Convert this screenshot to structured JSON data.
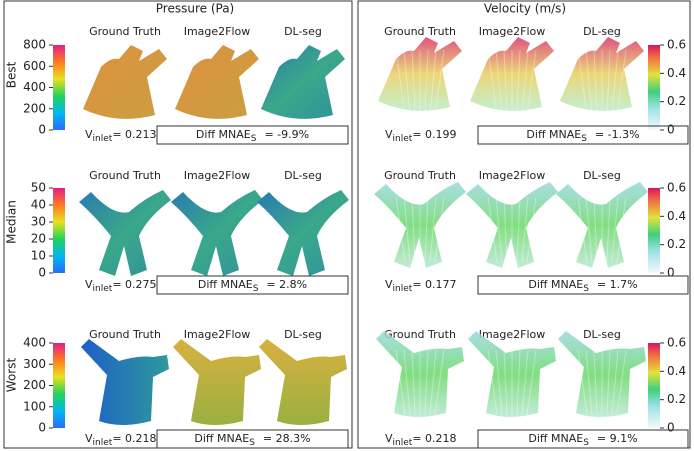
{
  "row_labels": [
    "Best",
    "Median",
    "Worst"
  ],
  "vinlet_symbol": "V",
  "vinlet_subscript": "inlet",
  "diff_label": "Diff MNAE",
  "diff_subscript": "S",
  "panels": [
    {
      "title": "Pressure (Pa)",
      "columns": [
        "Ground Truth",
        "Image2Flow",
        "DL-seg"
      ],
      "rows": [
        {
          "colorbar": {
            "lim": [
              0,
              800
            ],
            "ticks": [
              0,
              200,
              400,
              600,
              800
            ]
          },
          "vinlet": "= 0.213",
          "diff": "= -9.9%"
        },
        {
          "colorbar": {
            "lim": [
              0,
              50
            ],
            "ticks": [
              0,
              10,
              20,
              30,
              40,
              50
            ]
          },
          "vinlet": "= 0.275",
          "diff": "= 2.8%"
        },
        {
          "colorbar": {
            "lim": [
              0,
              400
            ],
            "ticks": [
              0,
              100,
              200,
              300,
              400
            ]
          },
          "vinlet": "= 0.218",
          "diff": "= 28.3%"
        }
      ]
    },
    {
      "title": "Velocity (m/s)",
      "columns": [
        "Ground Truth",
        "Image2Flow",
        "DL-seg"
      ],
      "rows": [
        {
          "colorbar": {
            "lim": [
              0,
              0.6
            ],
            "ticks": [
              0,
              0.2,
              0.4,
              0.6
            ]
          },
          "vinlet": "= 0.199",
          "diff": "= -1.3%"
        },
        {
          "colorbar": {
            "lim": [
              0,
              0.6
            ],
            "ticks": [
              0,
              0.2,
              0.4,
              0.6
            ]
          },
          "vinlet": "= 0.177",
          "diff": "= 1.7%"
        },
        {
          "colorbar": {
            "lim": [
              0,
              0.6
            ],
            "ticks": [
              0,
              0.2,
              0.4,
              0.6
            ]
          },
          "vinlet": "= 0.218",
          "diff": "= 9.1%"
        }
      ]
    }
  ]
}
